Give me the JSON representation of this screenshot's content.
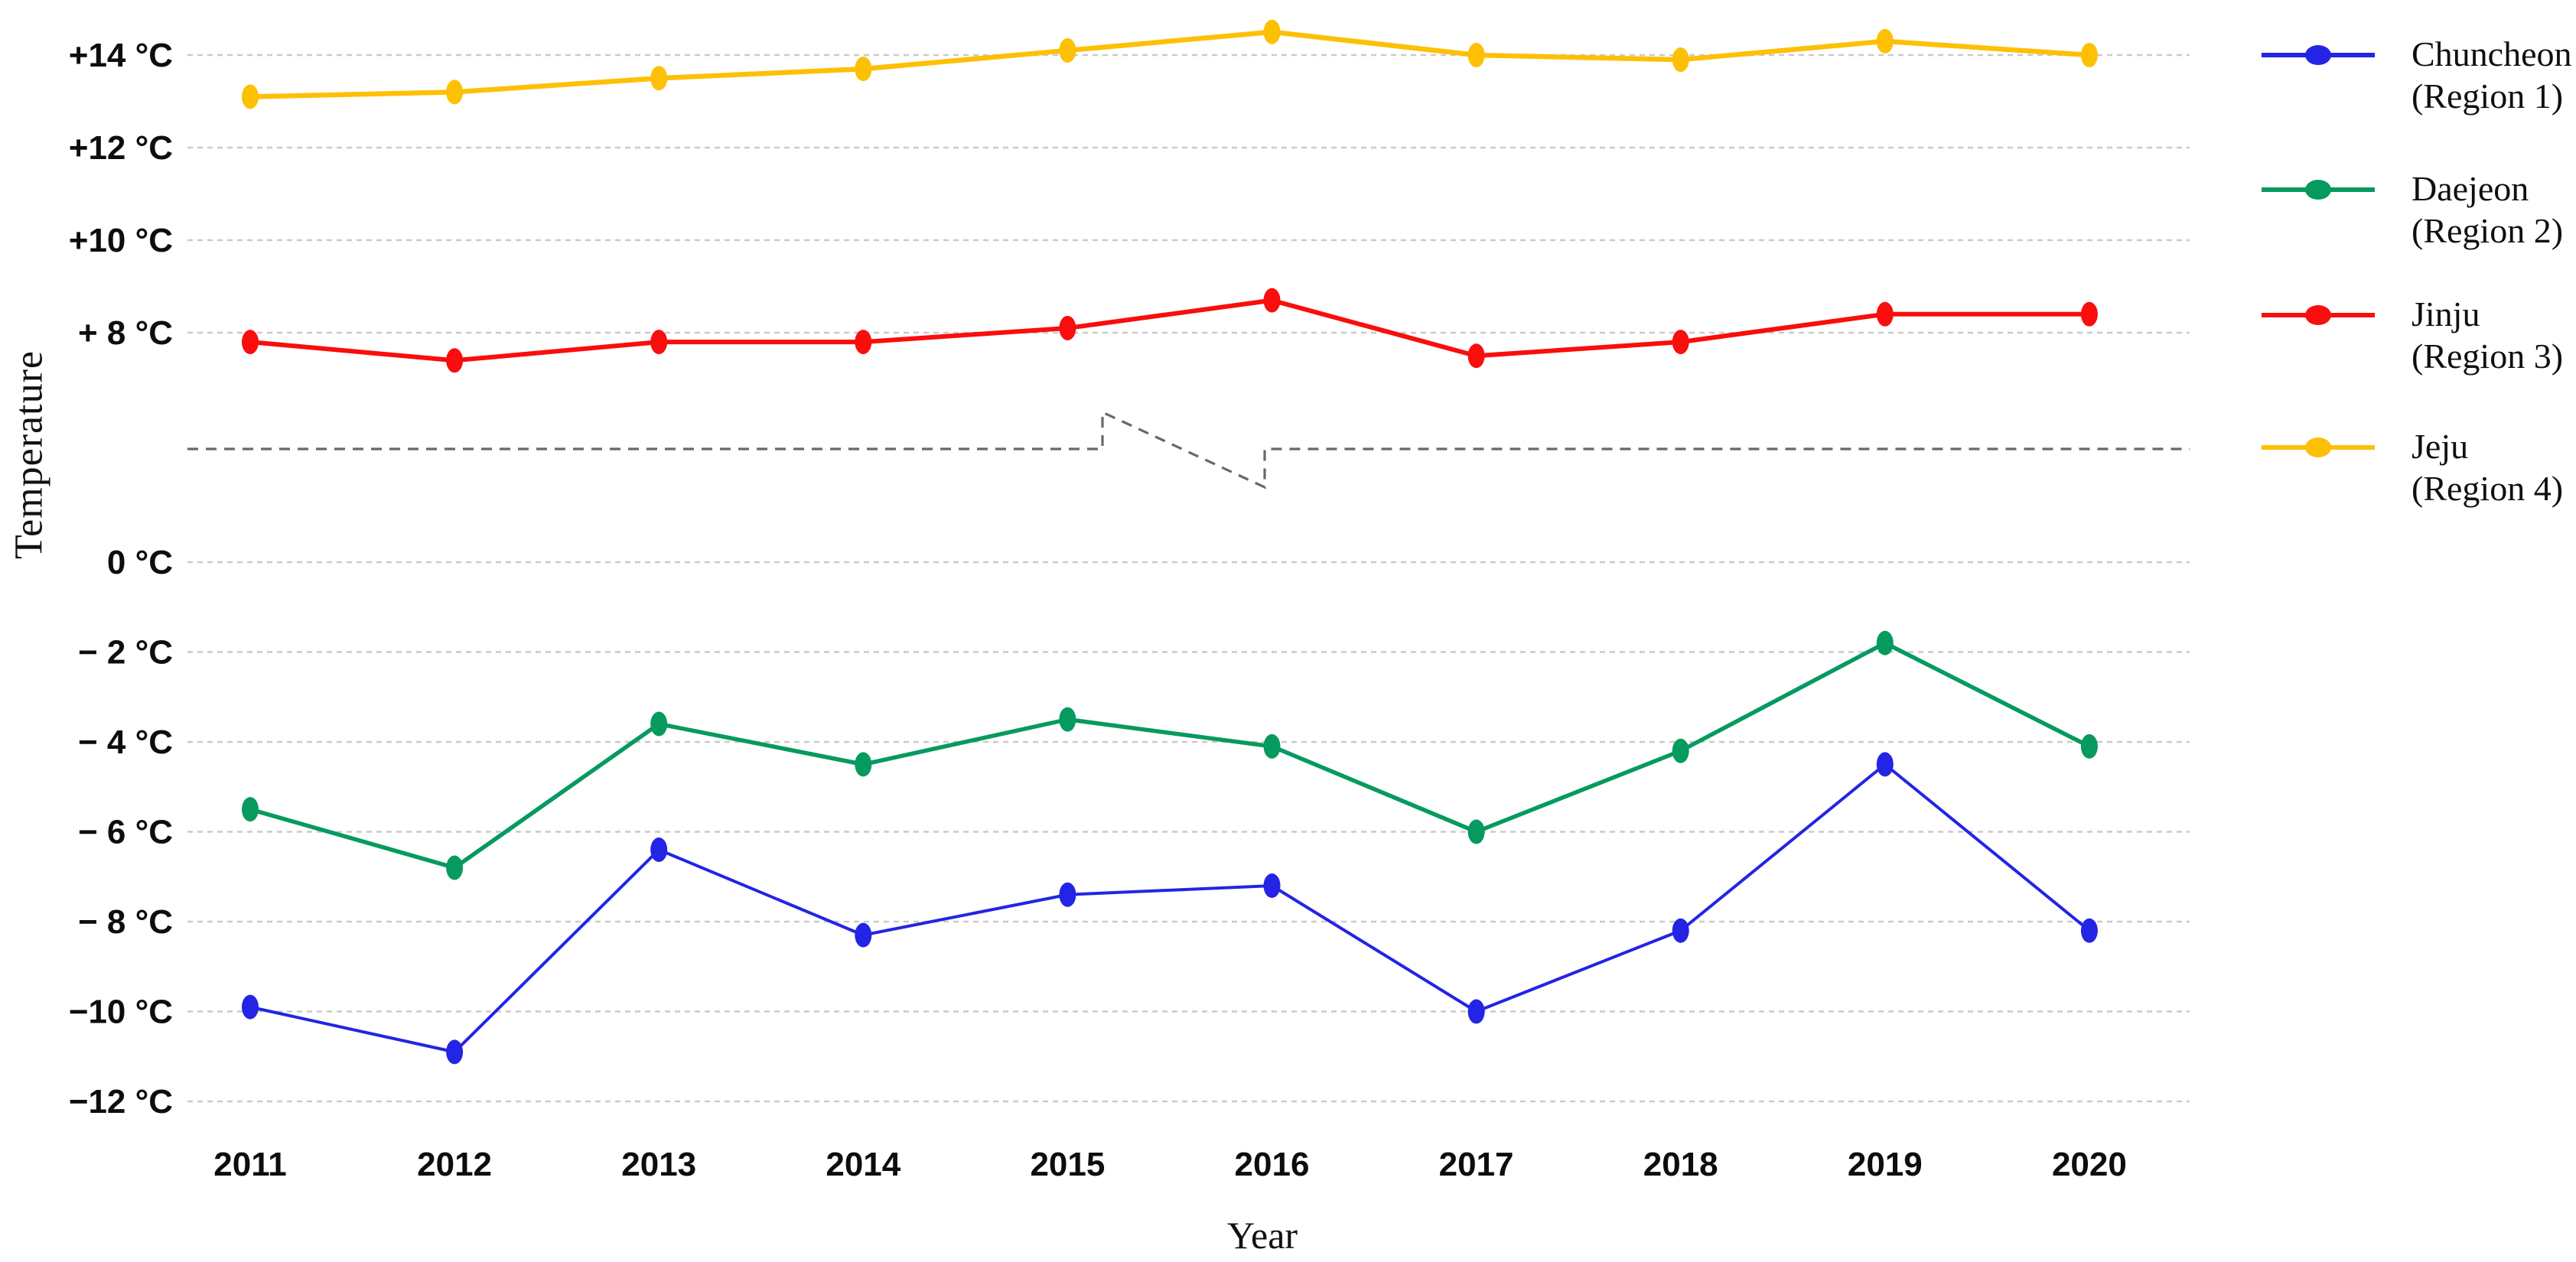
{
  "chart_data": {
    "type": "line",
    "title": "",
    "xlabel": "Year",
    "ylabel": "Temperature",
    "x": [
      2011,
      2012,
      2013,
      2014,
      2015,
      2016,
      2017,
      2018,
      2019,
      2020
    ],
    "x_tick_labels": [
      "2011",
      "2012",
      "2013",
      "2014",
      "2015",
      "2016",
      "2017",
      "2018",
      "2019",
      "2020"
    ],
    "series": [
      {
        "name": "Chuncheon (Region 1)",
        "legend_lines": [
          "Chuncheon",
          "(Region 1)"
        ],
        "color": "#2424e4",
        "values": [
          -9.9,
          -10.9,
          -6.4,
          -8.3,
          -7.4,
          -7.2,
          -10.0,
          -8.2,
          -4.5,
          -8.2
        ]
      },
      {
        "name": "Daejeon (Region 2)",
        "legend_lines": [
          "Daejeon",
          "(Region 2)"
        ],
        "color": "#069a5f",
        "values": [
          -5.5,
          -6.8,
          -3.6,
          -4.5,
          -3.5,
          -4.1,
          -6.0,
          -4.2,
          -1.8,
          -4.1
        ]
      },
      {
        "name": "Jinju (Region 3)",
        "legend_lines": [
          "Jinju",
          "(Region 3)"
        ],
        "color": "#fa0d0d",
        "values": [
          7.8,
          7.4,
          7.8,
          7.8,
          8.1,
          8.7,
          7.5,
          7.8,
          8.4,
          8.4
        ]
      },
      {
        "name": "Jeju (Region 4)",
        "legend_lines": [
          "Jeju",
          "(Region 4)"
        ],
        "color": "#fdc005",
        "values": [
          13.1,
          13.2,
          13.5,
          13.7,
          14.1,
          14.5,
          14.0,
          13.9,
          14.3,
          14.0
        ]
      }
    ],
    "y_axis": {
      "unit": "°C",
      "top_section_ticks": [
        "+14 °C",
        "+12 °C",
        "+10 °C",
        "+ 8 °C"
      ],
      "top_section_values": [
        14,
        12,
        10,
        8
      ],
      "bottom_section_ticks": [
        "0 °C",
        "− 2 °C",
        "− 4 °C",
        "− 6 °C",
        "− 8 °C",
        "−10 °C",
        "−12 °C"
      ],
      "bottom_section_values": [
        0,
        -2,
        -4,
        -6,
        -8,
        -10,
        -12
      ],
      "axis_break": true,
      "axis_break_between": [
        8,
        0
      ],
      "top_range": [
        7,
        15
      ],
      "bottom_range": [
        -12.6,
        0.9
      ]
    },
    "grid": "horizontal dashed gray lines at every labeled tick",
    "legend_position": "right",
    "colors": {
      "gridline": "#cacaca",
      "axis_break_line": "#686868",
      "tick_text": "#0d0d0d",
      "legend_text": "#0f0f0f"
    }
  }
}
